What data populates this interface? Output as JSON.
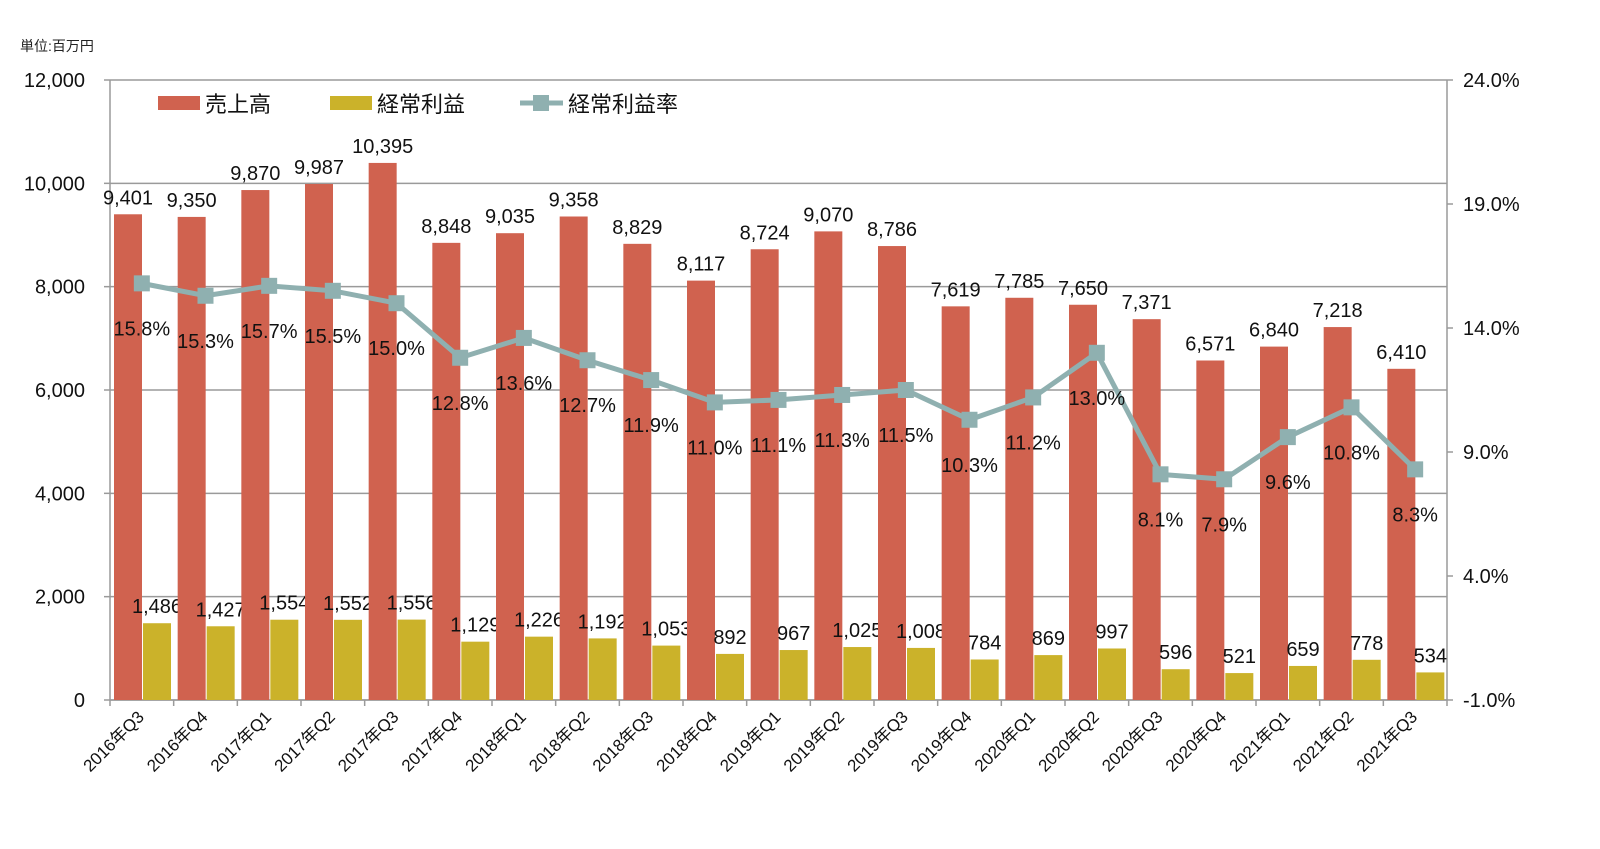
{
  "chart_data": {
    "type": "bar",
    "unit_label": "単位:百万円",
    "categories": [
      "2016年Q3",
      "2016年Q4",
      "2017年Q1",
      "2017年Q2",
      "2017年Q3",
      "2017年Q4",
      "2018年Q1",
      "2018年Q2",
      "2018年Q3",
      "2018年Q4",
      "2019年Q1",
      "2019年Q2",
      "2019年Q3",
      "2019年Q4",
      "2020年Q1",
      "2020年Q2",
      "2020年Q3",
      "2020年Q4",
      "2021年Q1",
      "2021年Q2",
      "2021年Q3"
    ],
    "series": [
      {
        "name": "売上高",
        "type": "bar",
        "axis": "left",
        "color": "#d0624f",
        "values": [
          9401,
          9350,
          9870,
          9987,
          10395,
          8848,
          9035,
          9358,
          8829,
          8117,
          8724,
          9070,
          8786,
          7619,
          7785,
          7650,
          7371,
          6571,
          6840,
          7218,
          6410
        ]
      },
      {
        "name": "経常利益",
        "type": "bar",
        "axis": "left",
        "color": "#cbb22a",
        "values": [
          1486,
          1427,
          1554,
          1552,
          1556,
          1129,
          1226,
          1192,
          1053,
          892,
          967,
          1025,
          1008,
          784,
          869,
          997,
          596,
          521,
          659,
          778,
          534
        ]
      },
      {
        "name": "経常利益率",
        "type": "line",
        "axis": "right",
        "color": "#8fb0b0",
        "values": [
          15.8,
          15.3,
          15.7,
          15.5,
          15.0,
          12.8,
          13.6,
          12.7,
          11.9,
          11.0,
          11.1,
          11.3,
          11.5,
          10.3,
          11.2,
          13.0,
          8.1,
          7.9,
          9.6,
          10.8,
          8.3
        ]
      }
    ],
    "left_axis": {
      "ylim": [
        0,
        12000
      ],
      "ticks": [
        "0",
        "2,000",
        "4,000",
        "6,000",
        "8,000",
        "10,000",
        "12,000"
      ]
    },
    "right_axis": {
      "ylim": [
        -1.0,
        24.0
      ],
      "ticks": [
        "-1.0%",
        "4.0%",
        "9.0%",
        "14.0%",
        "19.0%",
        "24.0%"
      ]
    },
    "grid": true,
    "legend_position": "top-left"
  }
}
